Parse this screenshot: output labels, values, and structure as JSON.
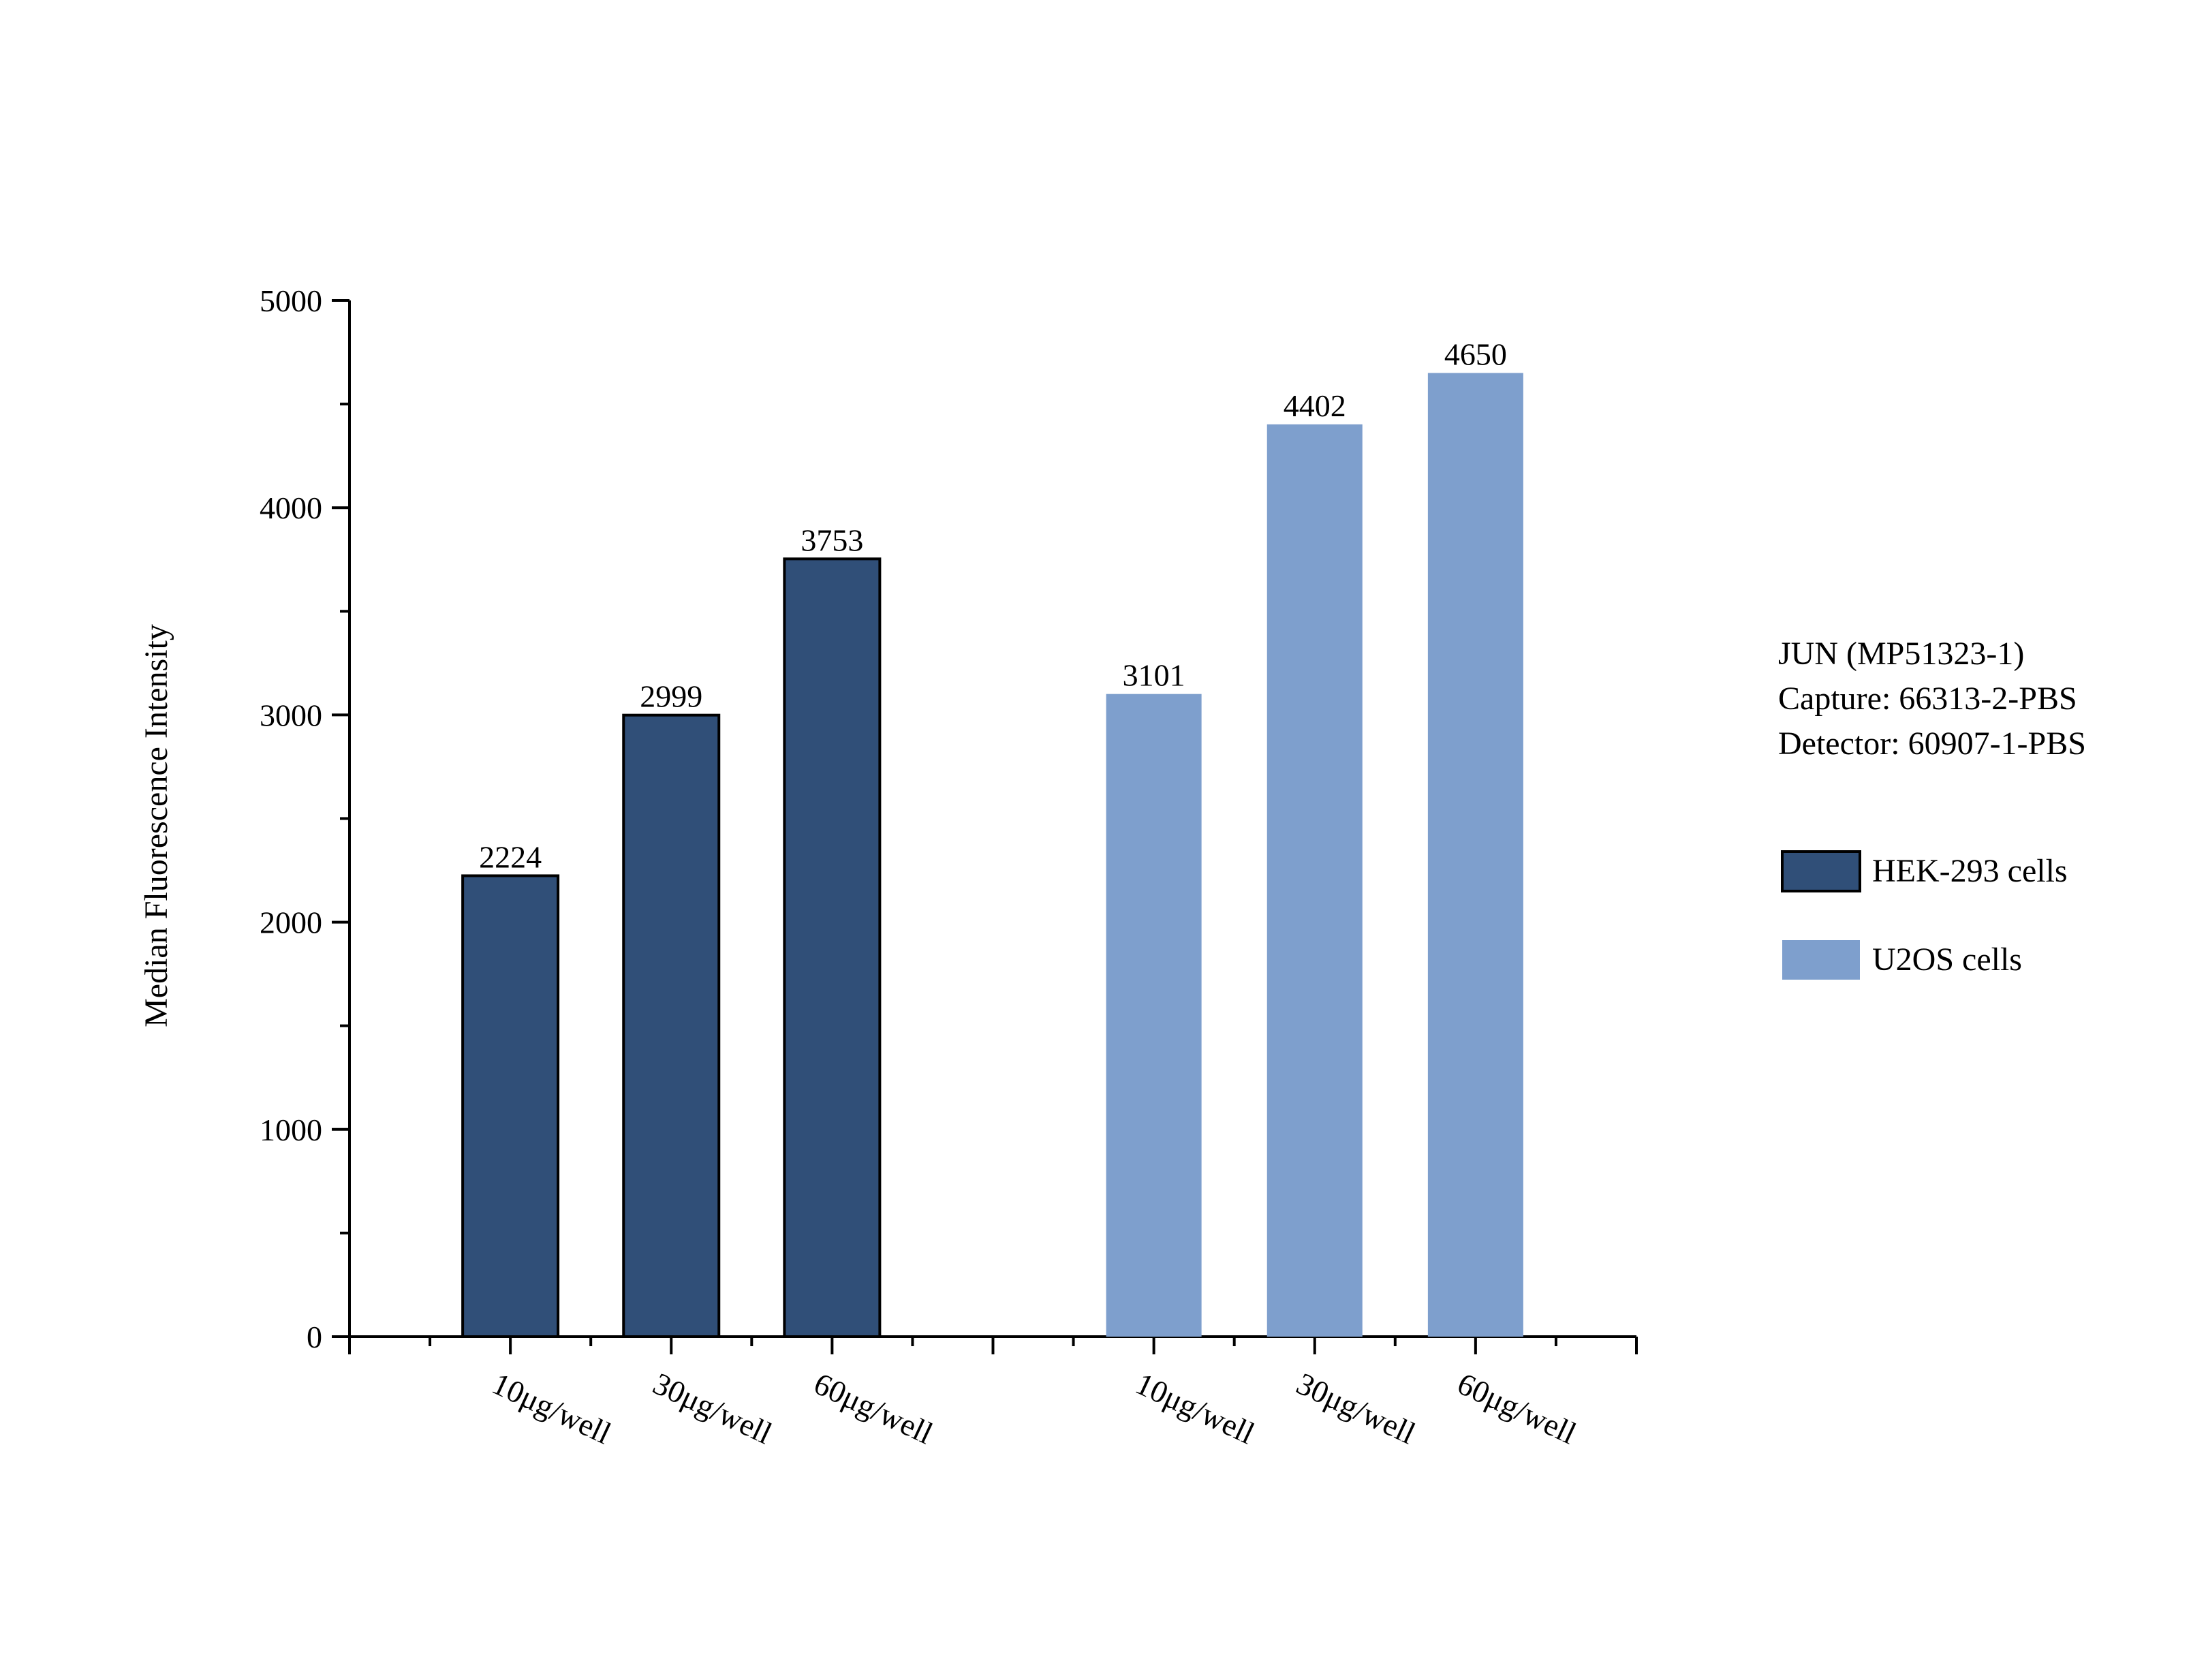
{
  "chart_data": {
    "type": "bar",
    "ylabel": "Median Fluorescence Intensity",
    "ylim": [
      0,
      5000
    ],
    "yticks": [
      0,
      1000,
      2000,
      3000,
      4000,
      5000
    ],
    "grid": false,
    "legend_placement": "right",
    "info_text": [
      "JUN (MP51323-1)",
      "Capture: 66313-2-PBS",
      "Detector: 60907-1-PBS"
    ],
    "groups": [
      {
        "name": "HEK-293 cells",
        "color": "#304F78",
        "outlined": true,
        "categories": [
          "10μg/well",
          "30μg/well",
          "60μg/well"
        ],
        "values": [
          2224,
          2999,
          3753
        ]
      },
      {
        "name": "U2OS cells",
        "color": "#7E9FCD",
        "outlined": false,
        "categories": [
          "10μg/well",
          "30μg/well",
          "60μg/well"
        ],
        "values": [
          3101,
          4402,
          4650
        ]
      }
    ]
  }
}
